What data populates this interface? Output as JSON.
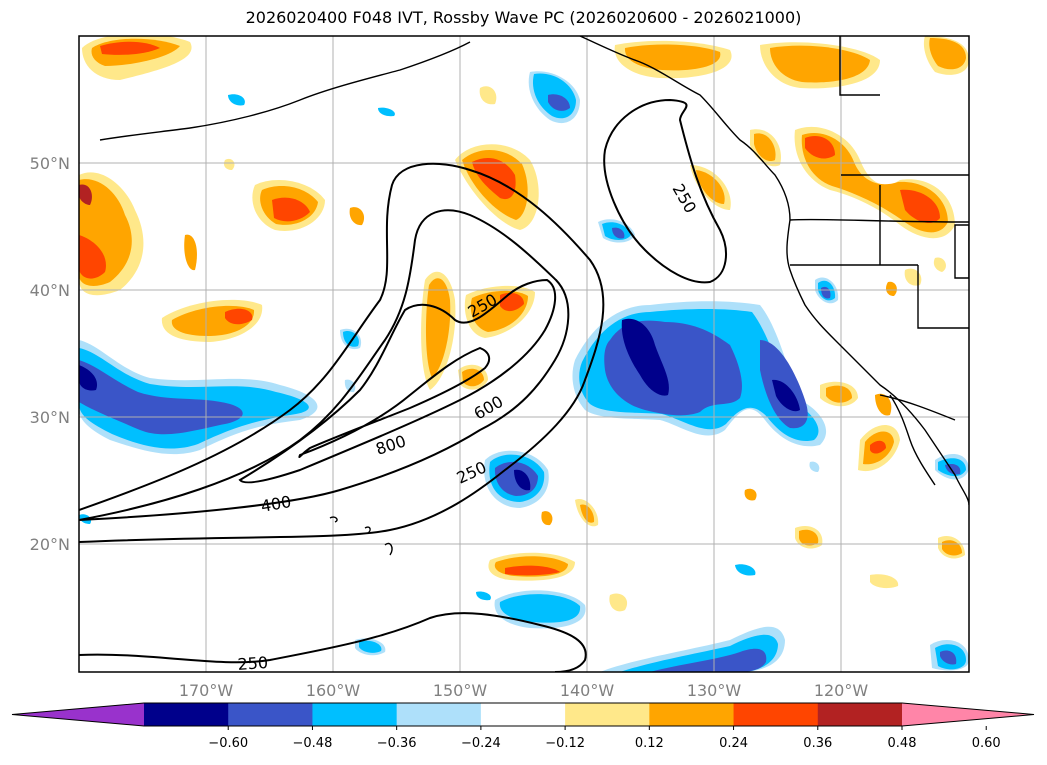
{
  "title": "2026020400 F048 IVT, Rossby Wave PC (2026020600 - 2026021000)",
  "lat_labels": [
    "50°N",
    "40°N",
    "30°N",
    "20°N"
  ],
  "lon_labels": [
    "170°W",
    "160°W",
    "150°W",
    "140°W",
    "130°W",
    "120°W"
  ],
  "contour_labels": [
    "250",
    "250",
    "800",
    "600",
    "250",
    "400",
    "250"
  ],
  "colorbar": {
    "ticks": [
      "−0.60",
      "−0.48",
      "−0.36",
      "−0.24",
      "−0.12",
      "0.12",
      "0.24",
      "0.36",
      "0.48",
      "0.60"
    ],
    "colors": [
      "#9932cc",
      "#00008b",
      "#3a55c8",
      "#00bfff",
      "#aee0fa",
      "#ffffff",
      "#ffe88a",
      "#ffa500",
      "#ff4500",
      "#b22222",
      "#ff85a8"
    ]
  },
  "chart_data": {
    "type": "map",
    "fields": [
      "IVT contours",
      "Rossby Wave PC shading"
    ],
    "contour_levels": [
      250,
      400,
      600,
      800
    ],
    "lon_range": [
      "180°W",
      "110°W"
    ],
    "lat_range": [
      "10°N",
      "60°N"
    ],
    "shading_levels": [
      -0.6,
      -0.48,
      -0.36,
      -0.24,
      -0.12,
      0.12,
      0.24,
      0.36,
      0.48,
      0.6
    ],
    "grid": true
  }
}
